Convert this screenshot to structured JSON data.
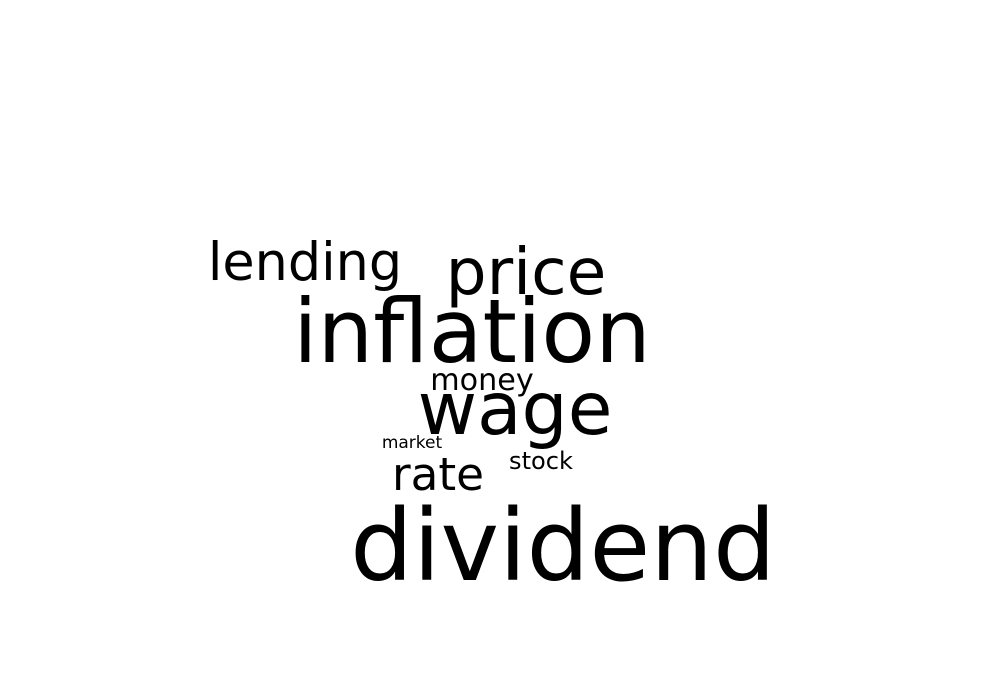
{
  "chart_data": {
    "type": "wordcloud",
    "words": [
      {
        "text": "dividend",
        "weight": 100
      },
      {
        "text": "inflation",
        "weight": 89
      },
      {
        "text": "wage",
        "weight": 74
      },
      {
        "text": "price",
        "weight": 66
      },
      {
        "text": "lending",
        "weight": 54
      },
      {
        "text": "rate",
        "weight": 47
      },
      {
        "text": "money",
        "weight": 32
      },
      {
        "text": "stock",
        "weight": 26
      },
      {
        "text": "market",
        "weight": 19
      }
    ],
    "colors": {
      "text": "#000000",
      "background": "#ffffff"
    }
  }
}
